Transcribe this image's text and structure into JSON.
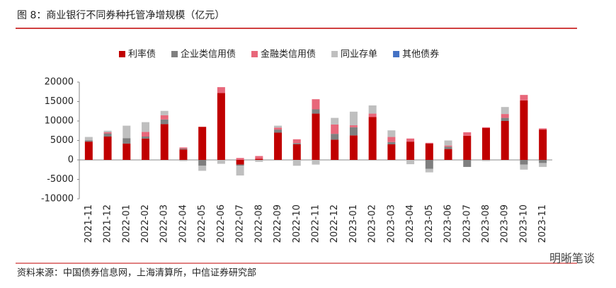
{
  "chart_data": {
    "type": "stacked_bar",
    "title": "图 8：商业银行不同券种托管净增规模（亿元）",
    "source": "资料来源：中国债券信息网，上海清算所，中信证券研究部",
    "watermark": "明晰笔谈",
    "categories": [
      "2021-11",
      "2021-12",
      "2022-01",
      "2022-02",
      "2022-03",
      "2022-04",
      "2022-05",
      "2022-06",
      "2022-07",
      "2022-08",
      "2022-09",
      "2022-10",
      "2022-11",
      "2022-12",
      "2023-01",
      "2023-02",
      "2023-03",
      "2023-04",
      "2023-05",
      "2023-06",
      "2023-07",
      "2023-08",
      "2023-09",
      "2023-10",
      "2023-11"
    ],
    "series": [
      {
        "name": "利率债",
        "color": "#c00000",
        "values": [
          4700,
          6000,
          4200,
          5500,
          9200,
          2700,
          8500,
          17200,
          -1200,
          300,
          7000,
          4000,
          11900,
          5200,
          6300,
          11000,
          4000,
          4700,
          4200,
          2800,
          6200,
          8200,
          10000,
          15300,
          7800
        ]
      },
      {
        "name": "企业类信用债",
        "color": "#7f7f7f",
        "values": [
          300,
          800,
          1400,
          500,
          1200,
          200,
          -1500,
          0,
          -300,
          0,
          800,
          300,
          1100,
          1500,
          2100,
          0,
          600,
          0,
          -2300,
          600,
          -1800,
          0,
          800,
          -1200,
          -800
        ]
      },
      {
        "name": "金融类信用债",
        "color": "#e8677a",
        "values": [
          0,
          300,
          0,
          1200,
          1100,
          300,
          0,
          1500,
          500,
          700,
          500,
          1000,
          2600,
          2400,
          500,
          900,
          1300,
          800,
          200,
          300,
          900,
          200,
          1000,
          1400,
          300
        ]
      },
      {
        "name": "同业存单",
        "color": "#bfbfbf",
        "values": [
          900,
          400,
          3200,
          2500,
          1100,
          -300,
          -1300,
          -1000,
          -2500,
          -500,
          500,
          -1500,
          -1200,
          1700,
          3500,
          2100,
          1700,
          -1100,
          -900,
          1300,
          0,
          -300,
          1800,
          -1300,
          -1000
        ]
      },
      {
        "name": "其他债券",
        "color": "#4472c4",
        "values": [
          0,
          0,
          0,
          0,
          0,
          0,
          0,
          0,
          0,
          0,
          0,
          0,
          0,
          0,
          0,
          0,
          0,
          0,
          0,
          0,
          0,
          0,
          0,
          0,
          0
        ]
      }
    ],
    "ylim": [
      -10000,
      20000
    ],
    "yticks": [
      -10000,
      -5000,
      0,
      5000,
      10000,
      15000,
      20000
    ],
    "grid": false,
    "legend": "top"
  }
}
